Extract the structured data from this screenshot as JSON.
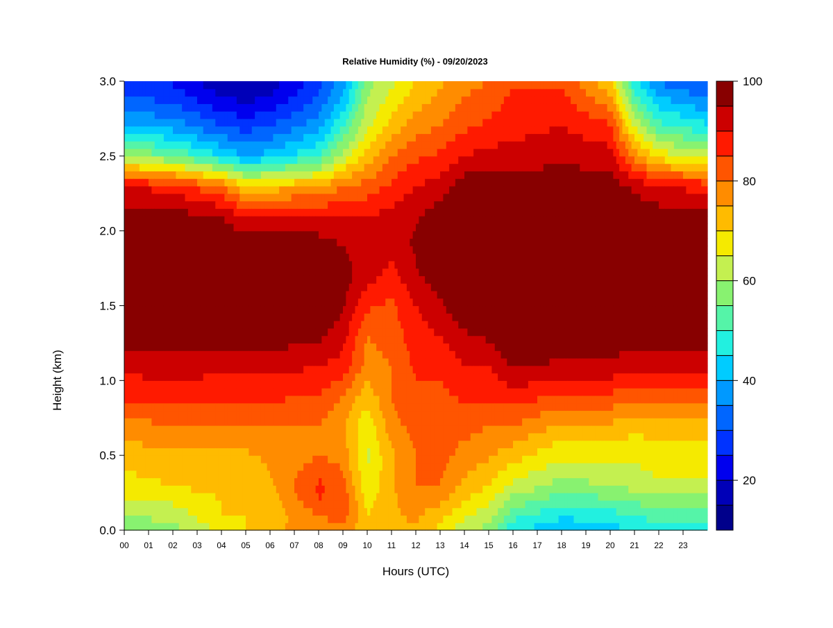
{
  "chart_data": {
    "type": "heatmap",
    "title": "Relative Humidity (%) - 09/20/2023",
    "xlabel": "Hours (UTC)",
    "ylabel": "Height (km)",
    "x_range": [
      0,
      24
    ],
    "y_range": [
      0.0,
      3.0
    ],
    "x_ticks": [
      "00",
      "01",
      "02",
      "03",
      "04",
      "05",
      "06",
      "07",
      "08",
      "09",
      "10",
      "11",
      "12",
      "13",
      "14",
      "15",
      "16",
      "17",
      "18",
      "19",
      "20",
      "21",
      "22",
      "23"
    ],
    "y_ticks": [
      "0.0",
      "0.5",
      "1.0",
      "1.5",
      "2.0",
      "2.5",
      "3.0"
    ],
    "y_tick_values": [
      0.0,
      0.5,
      1.0,
      1.5,
      2.0,
      2.5,
      3.0
    ],
    "colorbar": {
      "min": 10,
      "max": 100,
      "step": 5,
      "ticks": [
        "20",
        "40",
        "60",
        "80",
        "100"
      ],
      "tick_values": [
        20,
        40,
        60,
        80,
        100
      ],
      "colors": [
        "#00008b",
        "#0000b8",
        "#0000ee",
        "#0033ff",
        "#0066ff",
        "#0099ff",
        "#00ccff",
        "#22f0e0",
        "#55f4a8",
        "#88f270",
        "#c4f050",
        "#f5ea00",
        "#ffbb00",
        "#ff8c00",
        "#ff5500",
        "#ff1a00",
        "#cc0000",
        "#880000"
      ]
    },
    "profile_heights_km": [
      0.0,
      0.1,
      0.2,
      0.3,
      0.5,
      0.7,
      0.9,
      1.1,
      1.3,
      1.5,
      1.7,
      1.9,
      2.1,
      2.3,
      2.5,
      2.7,
      2.9,
      3.0
    ],
    "profiles": [
      {
        "hour": 0,
        "rh": [
          55,
          60,
          64,
          68,
          72,
          78,
          86,
          92,
          97,
          100,
          100,
          100,
          98,
          90,
          60,
          40,
          30,
          25
        ]
      },
      {
        "hour": 2,
        "rh": [
          58,
          62,
          66,
          70,
          74,
          80,
          86,
          93,
          98,
          100,
          100,
          100,
          97,
          88,
          55,
          38,
          28,
          24
        ]
      },
      {
        "hour": 4,
        "rh": [
          66,
          70,
          70,
          72,
          74,
          80,
          86,
          92,
          98,
          100,
          100,
          100,
          95,
          80,
          45,
          30,
          20,
          16
        ]
      },
      {
        "hour": 5,
        "rh": [
          70,
          70,
          70,
          72,
          74,
          80,
          86,
          92,
          98,
          100,
          100,
          99,
          90,
          70,
          40,
          28,
          18,
          15
        ]
      },
      {
        "hour": 6,
        "rh": [
          74,
          72,
          72,
          74,
          76,
          80,
          86,
          92,
          98,
          100,
          100,
          99,
          92,
          72,
          42,
          30,
          20,
          17
        ]
      },
      {
        "hour": 8,
        "rh": [
          78,
          80,
          85,
          86,
          80,
          80,
          85,
          90,
          96,
          100,
          100,
          98,
          90,
          75,
          50,
          38,
          30,
          28
        ]
      },
      {
        "hour": 9,
        "rh": [
          78,
          82,
          84,
          82,
          78,
          76,
          80,
          88,
          92,
          96,
          97,
          95,
          90,
          80,
          62,
          50,
          40,
          38
        ]
      },
      {
        "hour": 10,
        "rh": [
          72,
          70,
          68,
          66,
          64,
          66,
          72,
          78,
          80,
          86,
          92,
          94,
          90,
          82,
          72,
          64,
          60,
          58
        ]
      },
      {
        "hour": 11,
        "rh": [
          74,
          74,
          74,
          74,
          74,
          78,
          80,
          80,
          82,
          84,
          88,
          92,
          92,
          86,
          80,
          72,
          66,
          64
        ]
      },
      {
        "hour": 12,
        "rh": [
          74,
          76,
          78,
          80,
          80,
          82,
          84,
          86,
          88,
          90,
          94,
          96,
          94,
          90,
          84,
          78,
          72,
          70
        ]
      },
      {
        "hour": 13,
        "rh": [
          68,
          72,
          76,
          80,
          82,
          82,
          84,
          86,
          90,
          94,
          98,
          100,
          98,
          92,
          86,
          80,
          76,
          74
        ]
      },
      {
        "hour": 14,
        "rh": [
          62,
          66,
          70,
          74,
          78,
          82,
          86,
          90,
          94,
          100,
          100,
          100,
          100,
          98,
          90,
          84,
          80,
          78
        ]
      },
      {
        "hour": 15,
        "rh": [
          58,
          62,
          66,
          70,
          76,
          80,
          86,
          90,
          96,
          100,
          100,
          100,
          100,
          98,
          92,
          86,
          82,
          80
        ]
      },
      {
        "hour": 16,
        "rh": [
          46,
          52,
          58,
          64,
          72,
          80,
          88,
          96,
          100,
          100,
          100,
          100,
          100,
          98,
          92,
          88,
          86,
          84
        ]
      },
      {
        "hour": 18,
        "rh": [
          40,
          46,
          52,
          58,
          66,
          74,
          84,
          94,
          98,
          100,
          100,
          100,
          100,
          98,
          94,
          90,
          86,
          84
        ]
      },
      {
        "hour": 20,
        "rh": [
          42,
          48,
          54,
          60,
          66,
          74,
          84,
          94,
          98,
          100,
          100,
          100,
          100,
          98,
          92,
          86,
          76,
          70
        ]
      },
      {
        "hour": 21,
        "rh": [
          46,
          50,
          56,
          62,
          66,
          72,
          82,
          92,
          98,
          100,
          100,
          100,
          99,
          94,
          78,
          64,
          52,
          46
        ]
      },
      {
        "hour": 22,
        "rh": [
          48,
          52,
          58,
          64,
          68,
          72,
          82,
          92,
          98,
          100,
          100,
          100,
          98,
          90,
          68,
          52,
          40,
          34
        ]
      },
      {
        "hour": 24,
        "rh": [
          46,
          52,
          58,
          64,
          68,
          72,
          82,
          92,
          98,
          100,
          100,
          100,
          98,
          88,
          62,
          46,
          34,
          30
        ]
      }
    ],
    "legend": "colorbar-right",
    "grid": false
  }
}
